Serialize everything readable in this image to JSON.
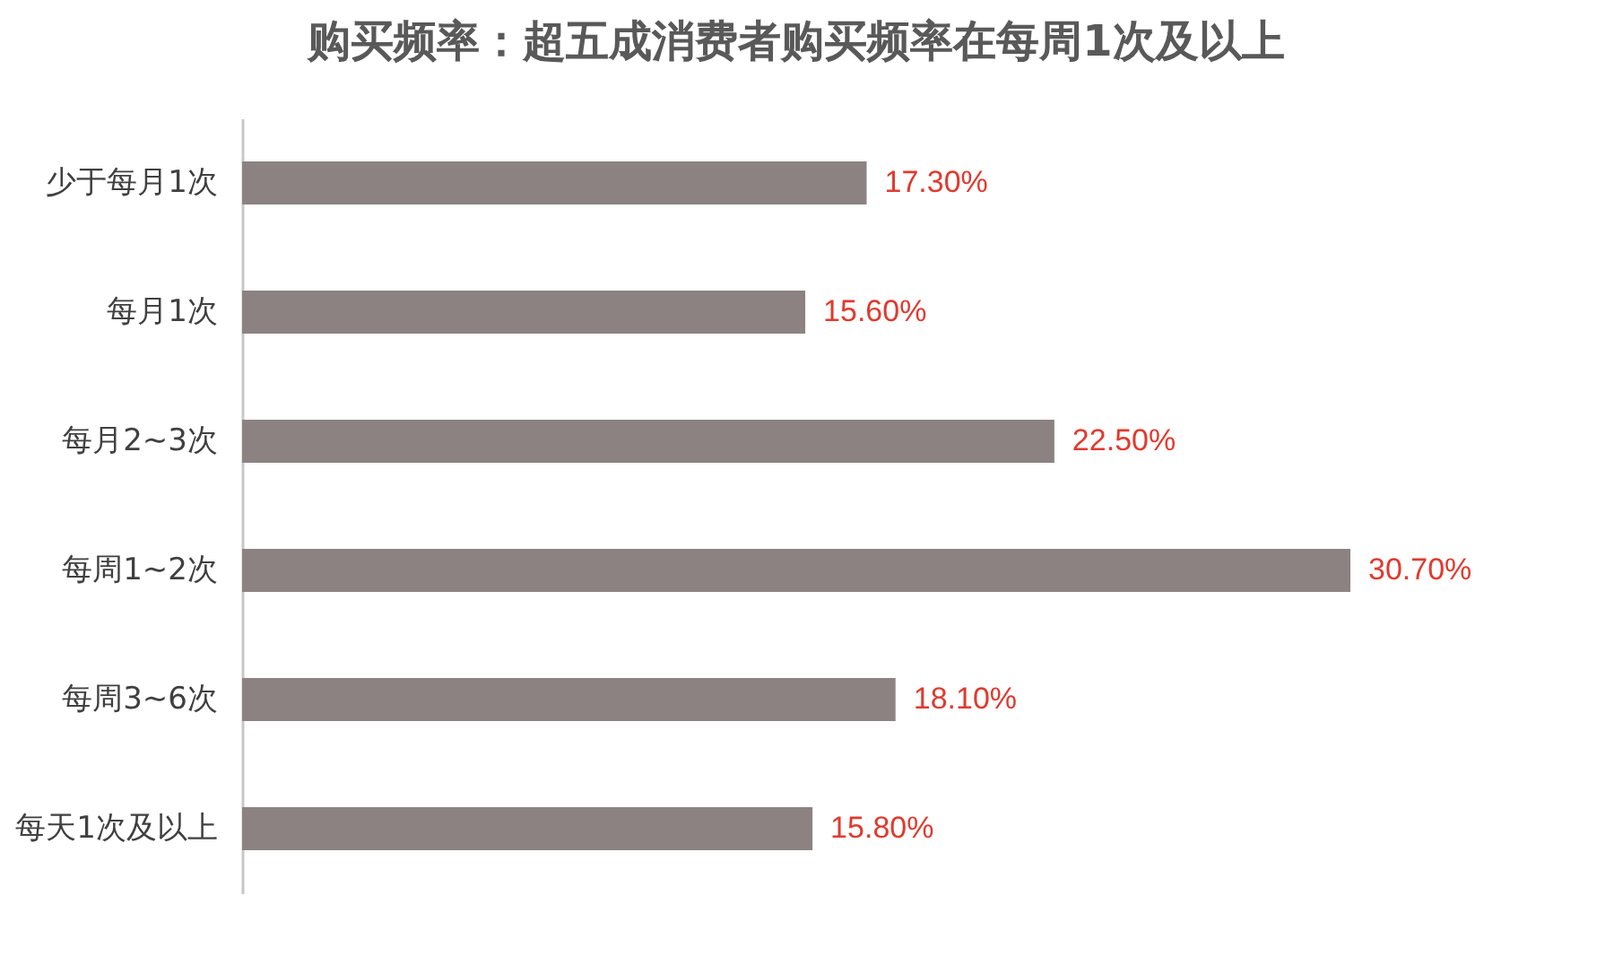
{
  "chart_data": {
    "type": "bar",
    "orientation": "horizontal",
    "title": "购买频率：超五成消费者购买频率在每周1次及以上",
    "categories": [
      "少于每月1次",
      "每月1次",
      "每月2~3次",
      "每周1~2次",
      "每周3~6次",
      "每天1次及以上"
    ],
    "values": [
      17.3,
      15.6,
      22.5,
      30.7,
      18.1,
      15.8
    ],
    "value_labels": [
      "17.30%",
      "15.60%",
      "22.50%",
      "30.70%",
      "18.10%",
      "15.80%"
    ],
    "color": "#8c8282"
  }
}
